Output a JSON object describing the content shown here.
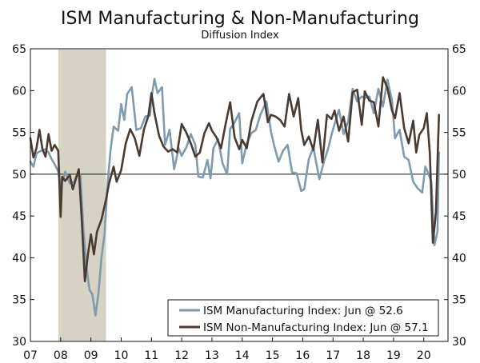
{
  "chart_data": {
    "type": "line",
    "title": "ISM Manufacturing & Non-Manufacturing",
    "subtitle": "Diffusion Index",
    "xlabel": "",
    "ylabel": "",
    "x_range": [
      2007.0,
      2020.8
    ],
    "ylim": [
      30,
      65
    ],
    "y_ticks": [
      30,
      35,
      40,
      45,
      50,
      55,
      60,
      65
    ],
    "x_ticks": [
      {
        "label": "07",
        "x": 2007.0
      },
      {
        "label": "08",
        "x": 2008.0
      },
      {
        "label": "09",
        "x": 2009.0
      },
      {
        "label": "10",
        "x": 2010.0
      },
      {
        "label": "11",
        "x": 2011.0
      },
      {
        "label": "12",
        "x": 2012.0
      },
      {
        "label": "13",
        "x": 2013.0
      },
      {
        "label": "14",
        "x": 2014.0
      },
      {
        "label": "15",
        "x": 2015.0
      },
      {
        "label": "16",
        "x": 2016.0
      },
      {
        "label": "17",
        "x": 2017.0
      },
      {
        "label": "18",
        "x": 2018.0
      },
      {
        "label": "19",
        "x": 2019.0
      },
      {
        "label": "20",
        "x": 2020.0
      }
    ],
    "reference_line": 50,
    "recession": {
      "start": 2007.92,
      "end": 2009.5,
      "color": "#d6d2c4"
    },
    "grid": false,
    "legend_position": "bottom-right",
    "series": [
      {
        "name": "ISM Manufacturing Index: Jun @ 52.6",
        "color": "#7e9bb0",
        "points": [
          [
            2007.0,
            51.5
          ],
          [
            2007.1,
            50.9
          ],
          [
            2007.2,
            52.5
          ],
          [
            2007.3,
            52.7
          ],
          [
            2007.5,
            53.0
          ],
          [
            2007.6,
            52.6
          ],
          [
            2007.7,
            51.8
          ],
          [
            2007.8,
            51.2
          ],
          [
            2007.92,
            50.3
          ],
          [
            2008.0,
            48.4
          ],
          [
            2008.15,
            50.3
          ],
          [
            2008.3,
            48.9
          ],
          [
            2008.45,
            49.1
          ],
          [
            2008.55,
            50.0
          ],
          [
            2008.65,
            49.9
          ],
          [
            2008.75,
            43.5
          ],
          [
            2008.85,
            38.9
          ],
          [
            2008.95,
            36.2
          ],
          [
            2009.05,
            35.6
          ],
          [
            2009.15,
            33.1
          ],
          [
            2009.25,
            35.8
          ],
          [
            2009.35,
            40.1
          ],
          [
            2009.45,
            42.8
          ],
          [
            2009.55,
            48.9
          ],
          [
            2009.65,
            52.9
          ],
          [
            2009.75,
            55.7
          ],
          [
            2009.9,
            55.2
          ],
          [
            2010.0,
            58.4
          ],
          [
            2010.1,
            56.5
          ],
          [
            2010.2,
            59.6
          ],
          [
            2010.35,
            60.4
          ],
          [
            2010.5,
            55.3
          ],
          [
            2010.65,
            55.5
          ],
          [
            2010.8,
            56.9
          ],
          [
            2010.95,
            57.0
          ],
          [
            2011.0,
            59.1
          ],
          [
            2011.1,
            61.4
          ],
          [
            2011.2,
            59.7
          ],
          [
            2011.35,
            60.4
          ],
          [
            2011.45,
            53.5
          ],
          [
            2011.6,
            55.3
          ],
          [
            2011.75,
            50.6
          ],
          [
            2011.9,
            53.1
          ],
          [
            2012.0,
            52.2
          ],
          [
            2012.15,
            53.2
          ],
          [
            2012.3,
            54.8
          ],
          [
            2012.45,
            53.5
          ],
          [
            2012.55,
            49.7
          ],
          [
            2012.7,
            49.6
          ],
          [
            2012.85,
            51.7
          ],
          [
            2012.95,
            49.5
          ],
          [
            2013.05,
            53.1
          ],
          [
            2013.2,
            54.2
          ],
          [
            2013.35,
            51.3
          ],
          [
            2013.5,
            50.0
          ],
          [
            2013.6,
            55.4
          ],
          [
            2013.75,
            56.2
          ],
          [
            2013.9,
            57.3
          ],
          [
            2014.0,
            51.3
          ],
          [
            2014.15,
            53.7
          ],
          [
            2014.3,
            54.9
          ],
          [
            2014.45,
            55.3
          ],
          [
            2014.6,
            57.1
          ],
          [
            2014.8,
            58.7
          ],
          [
            2014.95,
            55.1
          ],
          [
            2015.05,
            53.5
          ],
          [
            2015.2,
            51.5
          ],
          [
            2015.35,
            52.8
          ],
          [
            2015.5,
            53.5
          ],
          [
            2015.65,
            50.2
          ],
          [
            2015.8,
            50.1
          ],
          [
            2015.95,
            48.0
          ],
          [
            2016.05,
            48.2
          ],
          [
            2016.2,
            51.8
          ],
          [
            2016.35,
            53.2
          ],
          [
            2016.55,
            49.4
          ],
          [
            2016.7,
            51.5
          ],
          [
            2016.85,
            53.2
          ],
          [
            2016.95,
            54.7
          ],
          [
            2017.05,
            56.0
          ],
          [
            2017.2,
            57.7
          ],
          [
            2017.35,
            54.8
          ],
          [
            2017.5,
            56.3
          ],
          [
            2017.65,
            60.2
          ],
          [
            2017.8,
            58.7
          ],
          [
            2017.95,
            59.3
          ],
          [
            2018.05,
            59.1
          ],
          [
            2018.2,
            59.3
          ],
          [
            2018.35,
            57.3
          ],
          [
            2018.5,
            60.2
          ],
          [
            2018.65,
            58.1
          ],
          [
            2018.8,
            61.3
          ],
          [
            2018.95,
            58.8
          ],
          [
            2019.05,
            54.3
          ],
          [
            2019.2,
            55.3
          ],
          [
            2019.35,
            52.1
          ],
          [
            2019.5,
            51.7
          ],
          [
            2019.65,
            49.1
          ],
          [
            2019.8,
            48.3
          ],
          [
            2019.95,
            47.8
          ],
          [
            2020.05,
            50.9
          ],
          [
            2020.15,
            50.1
          ],
          [
            2020.25,
            49.1
          ],
          [
            2020.35,
            41.5
          ],
          [
            2020.45,
            43.1
          ],
          [
            2020.5,
            52.6
          ]
        ]
      },
      {
        "name": "ISM Non-Manufacturing Index: Jun @ 57.1",
        "color": "#4a3a30",
        "points": [
          [
            2007.0,
            54.3
          ],
          [
            2007.1,
            52.0
          ],
          [
            2007.2,
            53.1
          ],
          [
            2007.3,
            55.3
          ],
          [
            2007.4,
            53.0
          ],
          [
            2007.5,
            52.1
          ],
          [
            2007.6,
            54.8
          ],
          [
            2007.7,
            52.8
          ],
          [
            2007.8,
            53.5
          ],
          [
            2007.92,
            52.8
          ],
          [
            2008.0,
            44.9
          ],
          [
            2008.05,
            49.7
          ],
          [
            2008.15,
            49.2
          ],
          [
            2008.3,
            49.9
          ],
          [
            2008.4,
            48.2
          ],
          [
            2008.5,
            49.4
          ],
          [
            2008.6,
            50.6
          ],
          [
            2008.7,
            44.4
          ],
          [
            2008.8,
            37.2
          ],
          [
            2008.9,
            40.4
          ],
          [
            2009.0,
            42.8
          ],
          [
            2009.1,
            40.4
          ],
          [
            2009.2,
            43.1
          ],
          [
            2009.35,
            44.6
          ],
          [
            2009.5,
            47.0
          ],
          [
            2009.6,
            48.9
          ],
          [
            2009.75,
            50.9
          ],
          [
            2009.85,
            49.1
          ],
          [
            2010.0,
            50.5
          ],
          [
            2010.15,
            53.7
          ],
          [
            2010.3,
            55.4
          ],
          [
            2010.45,
            54.3
          ],
          [
            2010.6,
            52.2
          ],
          [
            2010.75,
            55.3
          ],
          [
            2010.9,
            57.0
          ],
          [
            2011.0,
            59.7
          ],
          [
            2011.1,
            57.3
          ],
          [
            2011.25,
            54.6
          ],
          [
            2011.4,
            53.3
          ],
          [
            2011.55,
            52.7
          ],
          [
            2011.7,
            53.0
          ],
          [
            2011.85,
            52.6
          ],
          [
            2012.0,
            56.0
          ],
          [
            2012.15,
            55.0
          ],
          [
            2012.3,
            53.7
          ],
          [
            2012.45,
            52.1
          ],
          [
            2012.6,
            52.6
          ],
          [
            2012.75,
            54.9
          ],
          [
            2012.9,
            56.1
          ],
          [
            2013.0,
            55.2
          ],
          [
            2013.15,
            54.4
          ],
          [
            2013.3,
            53.1
          ],
          [
            2013.45,
            56.0
          ],
          [
            2013.6,
            58.6
          ],
          [
            2013.75,
            54.4
          ],
          [
            2013.9,
            53.0
          ],
          [
            2014.0,
            54.1
          ],
          [
            2014.15,
            53.1
          ],
          [
            2014.3,
            56.3
          ],
          [
            2014.5,
            58.7
          ],
          [
            2014.7,
            59.6
          ],
          [
            2014.85,
            56.2
          ],
          [
            2014.95,
            57.1
          ],
          [
            2015.1,
            56.9
          ],
          [
            2015.25,
            56.5
          ],
          [
            2015.4,
            55.7
          ],
          [
            2015.55,
            59.6
          ],
          [
            2015.7,
            56.9
          ],
          [
            2015.85,
            59.1
          ],
          [
            2015.95,
            55.3
          ],
          [
            2016.05,
            53.5
          ],
          [
            2016.2,
            54.5
          ],
          [
            2016.35,
            52.9
          ],
          [
            2016.5,
            56.5
          ],
          [
            2016.65,
            51.4
          ],
          [
            2016.8,
            57.1
          ],
          [
            2016.95,
            56.6
          ],
          [
            2017.05,
            57.6
          ],
          [
            2017.2,
            55.2
          ],
          [
            2017.35,
            56.9
          ],
          [
            2017.5,
            53.9
          ],
          [
            2017.65,
            59.8
          ],
          [
            2017.8,
            60.1
          ],
          [
            2017.95,
            55.9
          ],
          [
            2018.05,
            59.9
          ],
          [
            2018.2,
            58.8
          ],
          [
            2018.35,
            58.6
          ],
          [
            2018.5,
            55.7
          ],
          [
            2018.65,
            61.6
          ],
          [
            2018.8,
            60.3
          ],
          [
            2018.95,
            57.6
          ],
          [
            2019.05,
            56.7
          ],
          [
            2019.2,
            59.7
          ],
          [
            2019.35,
            55.5
          ],
          [
            2019.5,
            53.7
          ],
          [
            2019.65,
            56.4
          ],
          [
            2019.75,
            52.6
          ],
          [
            2019.85,
            54.7
          ],
          [
            2020.0,
            55.5
          ],
          [
            2020.1,
            57.3
          ],
          [
            2020.2,
            52.5
          ],
          [
            2020.3,
            41.8
          ],
          [
            2020.4,
            45.4
          ],
          [
            2020.5,
            57.1
          ]
        ]
      }
    ]
  }
}
